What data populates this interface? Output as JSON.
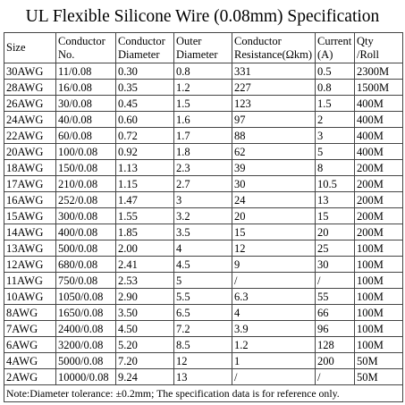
{
  "title": "UL Flexible Silicone Wire (0.08mm) Specification",
  "table": {
    "header": [
      [
        "Size"
      ],
      [
        "Conductor",
        "No."
      ],
      [
        "Conductor",
        "Diameter"
      ],
      [
        "Outer",
        "Diameter"
      ],
      [
        "Conductor",
        "Resistance(Ωkm)"
      ],
      [
        "Current",
        "(A)"
      ],
      [
        "Qty",
        "/Roll"
      ]
    ],
    "rows": [
      [
        "30AWG",
        "11/0.08",
        "0.30",
        "0.8",
        "331",
        "0.5",
        "2300M"
      ],
      [
        "28AWG",
        "16/0.08",
        "0.35",
        "1.2",
        "227",
        "0.8",
        "1500M"
      ],
      [
        "26AWG",
        "30/0.08",
        "0.45",
        "1.5",
        "123",
        "1.5",
        "400M"
      ],
      [
        "24AWG",
        "40/0.08",
        "0.60",
        "1.6",
        "97",
        "2",
        "400M"
      ],
      [
        "22AWG",
        "60/0.08",
        "0.72",
        "1.7",
        "88",
        "3",
        "400M"
      ],
      [
        "20AWG",
        "100/0.08",
        "0.92",
        "1.8",
        "62",
        "5",
        "400M"
      ],
      [
        "18AWG",
        "150/0.08",
        "1.13",
        "2.3",
        "39",
        "8",
        "200M"
      ],
      [
        "17AWG",
        "210/0.08",
        "1.15",
        "2.7",
        "30",
        "10.5",
        "200M"
      ],
      [
        "16AWG",
        "252/0.08",
        "1.47",
        "3",
        "24",
        "13",
        "200M"
      ],
      [
        "15AWG",
        "300/0.08",
        "1.55",
        "3.2",
        "20",
        "15",
        "200M"
      ],
      [
        "14AWG",
        "400/0.08",
        "1.85",
        "3.5",
        "15",
        "20",
        "200M"
      ],
      [
        "13AWG",
        "500/0.08",
        "2.00",
        "4",
        "12",
        "25",
        "100M"
      ],
      [
        "12AWG",
        "680/0.08",
        "2.41",
        "4.5",
        "9",
        "30",
        "100M"
      ],
      [
        "11AWG",
        "750/0.08",
        "2.53",
        "5",
        "/",
        "/",
        "100M"
      ],
      [
        "10AWG",
        "1050/0.08",
        "2.90",
        "5.5",
        "6.3",
        "55",
        "100M"
      ],
      [
        "8AWG",
        "1650/0.08",
        "3.50",
        "6.5",
        "4",
        "66",
        "100M"
      ],
      [
        "7AWG",
        "2400/0.08",
        "4.50",
        "7.2",
        "3.9",
        "96",
        "100M"
      ],
      [
        "6AWG",
        "3200/0.08",
        "5.20",
        "8.5",
        "1.2",
        "128",
        "100M"
      ],
      [
        "4AWG",
        "5000/0.08",
        "7.20",
        "12",
        "1",
        "200",
        "50M"
      ],
      [
        "2AWG",
        "10000/0.08",
        "9.24",
        "13",
        "/",
        "/",
        "50M"
      ]
    ],
    "note": "Note:Diameter tolerance: ±0.2mm; The specification data is for reference only."
  }
}
